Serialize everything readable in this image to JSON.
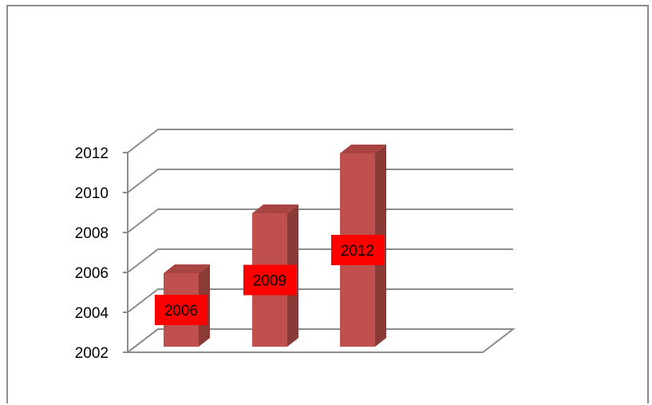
{
  "chart_data": {
    "type": "bar",
    "categories": [
      "2006",
      "2009",
      "2012"
    ],
    "values": [
      2006,
      2009,
      2012
    ],
    "data_labels": [
      "2006",
      "2009",
      "2012"
    ],
    "title": "",
    "xlabel": "",
    "ylabel": "",
    "ylim": [
      2002,
      2012
    ],
    "yticks": [
      "2002",
      "2004",
      "2006",
      "2008",
      "2010",
      "2012"
    ],
    "grid": true,
    "three_d": true,
    "legend": "none",
    "colors": {
      "bar_front": "#c0504d",
      "bar_side": "#8b3a38",
      "bar_top": "#a84441",
      "label_bg": "#ff0000",
      "gridline": "#8c8c8c"
    }
  }
}
